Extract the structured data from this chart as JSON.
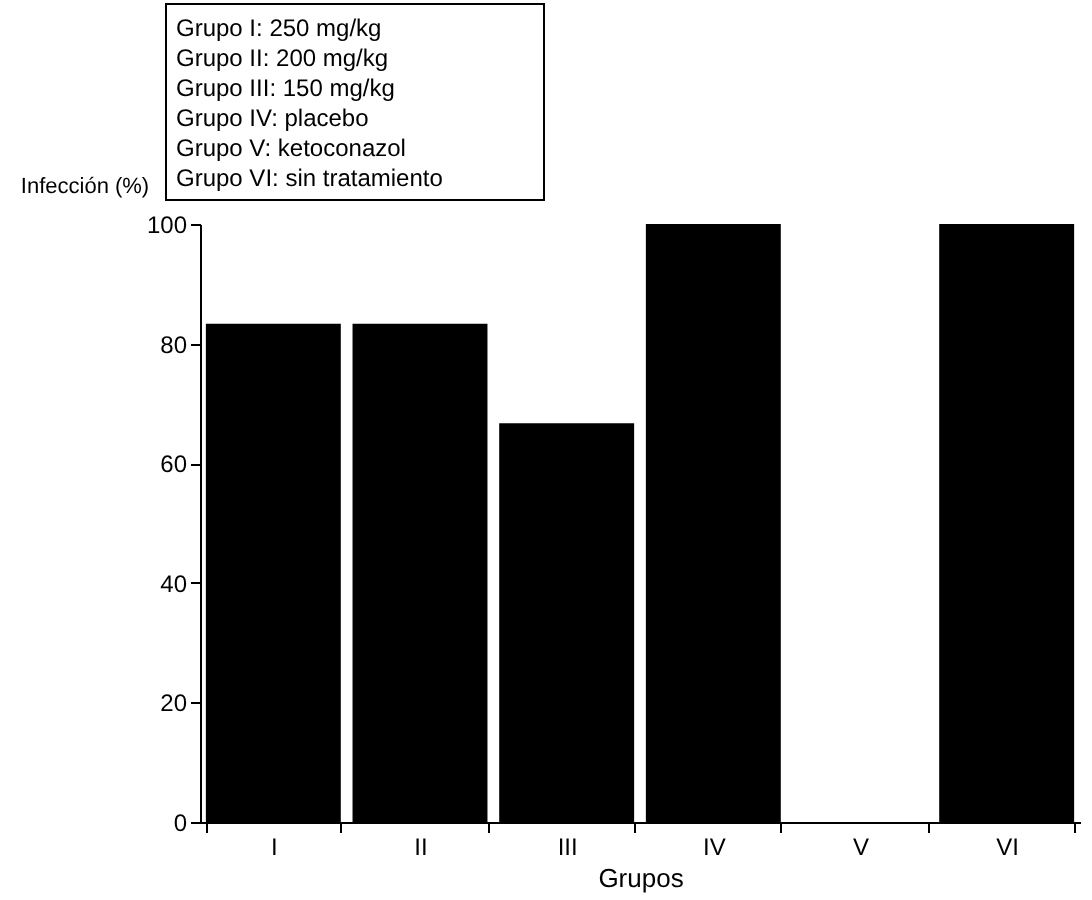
{
  "chart_data": {
    "type": "bar",
    "xlabel": "Grupos",
    "ylabel": "Infección (%)",
    "categories": [
      "I",
      "II",
      "III",
      "IV",
      "V",
      "VI"
    ],
    "values": [
      83.3,
      83.3,
      66.7,
      100,
      0,
      100
    ],
    "color": "#000000",
    "ylim": [
      0,
      100
    ],
    "yticks": [
      0,
      20,
      40,
      60,
      80,
      100
    ],
    "grid": false,
    "annotations": [
      "Grupo I:  250 mg/kg",
      "Grupo II:  200 mg/kg",
      "Grupo III:  150 mg/kg",
      "Grupo IV:  placebo",
      "Grupo V:  ketoconazol",
      "Grupo VI:  sin tratamiento"
    ]
  }
}
